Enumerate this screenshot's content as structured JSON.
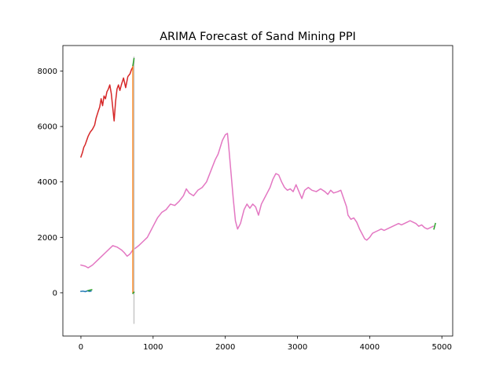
{
  "chart_data": {
    "type": "line",
    "title": "ARIMA Forecast of Sand Mining PPI",
    "xlabel": "",
    "ylabel": "",
    "xlim": [
      -250,
      5150
    ],
    "ylim": [
      -1560,
      8920
    ],
    "x_ticks": [
      0,
      1000,
      2000,
      3000,
      4000,
      5000
    ],
    "x_tick_labels": [
      "0",
      "1000",
      "2000",
      "3000",
      "4000",
      "5000"
    ],
    "y_ticks": [
      0,
      2000,
      4000,
      6000,
      8000
    ],
    "y_tick_labels": [
      "0",
      "2000",
      "4000",
      "6000",
      "8000"
    ],
    "grid": false,
    "legend": "none",
    "series": [
      {
        "color": "#d62728",
        "points": [
          [
            0,
            4900
          ],
          [
            20,
            5050
          ],
          [
            40,
            5250
          ],
          [
            60,
            5350
          ],
          [
            80,
            5500
          ],
          [
            100,
            5650
          ],
          [
            130,
            5800
          ],
          [
            160,
            5900
          ],
          [
            190,
            6050
          ],
          [
            210,
            6300
          ],
          [
            240,
            6550
          ],
          [
            260,
            6700
          ],
          [
            280,
            7000
          ],
          [
            300,
            6750
          ],
          [
            320,
            7100
          ],
          [
            340,
            7000
          ],
          [
            360,
            7250
          ],
          [
            380,
            7350
          ],
          [
            400,
            7500
          ],
          [
            420,
            7200
          ],
          [
            440,
            6700
          ],
          [
            460,
            6200
          ],
          [
            480,
            6900
          ],
          [
            500,
            7350
          ],
          [
            520,
            7500
          ],
          [
            540,
            7300
          ],
          [
            560,
            7500
          ],
          [
            590,
            7750
          ],
          [
            620,
            7400
          ],
          [
            650,
            7800
          ],
          [
            680,
            7900
          ],
          [
            700,
            8050
          ],
          [
            720,
            8150
          ]
        ]
      },
      {
        "color": "#e377c2",
        "points": [
          [
            0,
            1000
          ],
          [
            60,
            960
          ],
          [
            100,
            900
          ],
          [
            160,
            1000
          ],
          [
            220,
            1150
          ],
          [
            280,
            1300
          ],
          [
            340,
            1450
          ],
          [
            400,
            1600
          ],
          [
            440,
            1700
          ],
          [
            500,
            1650
          ],
          [
            560,
            1550
          ],
          [
            600,
            1450
          ],
          [
            640,
            1320
          ],
          [
            680,
            1400
          ],
          [
            720,
            1550
          ],
          [
            760,
            1620
          ],
          [
            800,
            1700
          ],
          [
            860,
            1850
          ],
          [
            920,
            2000
          ],
          [
            960,
            2200
          ],
          [
            1000,
            2400
          ],
          [
            1060,
            2700
          ],
          [
            1120,
            2900
          ],
          [
            1180,
            3000
          ],
          [
            1240,
            3200
          ],
          [
            1300,
            3150
          ],
          [
            1360,
            3300
          ],
          [
            1420,
            3500
          ],
          [
            1460,
            3750
          ],
          [
            1500,
            3600
          ],
          [
            1560,
            3500
          ],
          [
            1620,
            3700
          ],
          [
            1680,
            3800
          ],
          [
            1740,
            4000
          ],
          [
            1800,
            4400
          ],
          [
            1860,
            4800
          ],
          [
            1900,
            5000
          ],
          [
            1960,
            5500
          ],
          [
            2000,
            5700
          ],
          [
            2030,
            5750
          ],
          [
            2050,
            5200
          ],
          [
            2080,
            4300
          ],
          [
            2110,
            3400
          ],
          [
            2140,
            2600
          ],
          [
            2170,
            2300
          ],
          [
            2210,
            2500
          ],
          [
            2260,
            3000
          ],
          [
            2300,
            3200
          ],
          [
            2340,
            3050
          ],
          [
            2380,
            3200
          ],
          [
            2420,
            3100
          ],
          [
            2460,
            2800
          ],
          [
            2500,
            3200
          ],
          [
            2540,
            3400
          ],
          [
            2580,
            3600
          ],
          [
            2620,
            3800
          ],
          [
            2660,
            4100
          ],
          [
            2700,
            4300
          ],
          [
            2740,
            4250
          ],
          [
            2780,
            4000
          ],
          [
            2820,
            3800
          ],
          [
            2860,
            3700
          ],
          [
            2900,
            3750
          ],
          [
            2940,
            3650
          ],
          [
            2980,
            3900
          ],
          [
            3020,
            3650
          ],
          [
            3060,
            3400
          ],
          [
            3100,
            3700
          ],
          [
            3150,
            3800
          ],
          [
            3200,
            3700
          ],
          [
            3260,
            3650
          ],
          [
            3320,
            3750
          ],
          [
            3380,
            3650
          ],
          [
            3420,
            3550
          ],
          [
            3460,
            3700
          ],
          [
            3500,
            3600
          ],
          [
            3560,
            3650
          ],
          [
            3600,
            3700
          ],
          [
            3640,
            3400
          ],
          [
            3680,
            3100
          ],
          [
            3700,
            2800
          ],
          [
            3740,
            2650
          ],
          [
            3780,
            2700
          ],
          [
            3820,
            2550
          ],
          [
            3860,
            2300
          ],
          [
            3900,
            2100
          ],
          [
            3930,
            1950
          ],
          [
            3960,
            1900
          ],
          [
            4000,
            2000
          ],
          [
            4040,
            2150
          ],
          [
            4080,
            2200
          ],
          [
            4120,
            2250
          ],
          [
            4160,
            2300
          ],
          [
            4200,
            2250
          ],
          [
            4240,
            2300
          ],
          [
            4280,
            2350
          ],
          [
            4320,
            2400
          ],
          [
            4360,
            2450
          ],
          [
            4400,
            2500
          ],
          [
            4440,
            2450
          ],
          [
            4480,
            2500
          ],
          [
            4520,
            2550
          ],
          [
            4560,
            2600
          ],
          [
            4600,
            2550
          ],
          [
            4640,
            2500
          ],
          [
            4680,
            2400
          ],
          [
            4720,
            2450
          ],
          [
            4760,
            2350
          ],
          [
            4800,
            2300
          ],
          [
            4840,
            2350
          ],
          [
            4880,
            2400
          ]
        ]
      },
      {
        "color": "#ff7f0e",
        "points": [
          [
            720,
            0
          ],
          [
            720,
            8200
          ]
        ]
      },
      {
        "color": "#c7c7c7",
        "points": [
          [
            735,
            -1100
          ],
          [
            735,
            8500
          ]
        ]
      },
      {
        "color": "#2ca02c",
        "points": [
          [
            720,
            8200
          ],
          [
            735,
            8450
          ]
        ]
      },
      {
        "color": "#2ca02c",
        "points": [
          [
            720,
            -20
          ],
          [
            735,
            20
          ]
        ]
      },
      {
        "color": "#1f77b4",
        "points": [
          [
            0,
            50
          ],
          [
            30,
            60
          ],
          [
            60,
            40
          ],
          [
            90,
            70
          ],
          [
            120,
            50
          ],
          [
            140,
            60
          ]
        ]
      },
      {
        "color": "#2ca02c",
        "points": [
          [
            100,
            80
          ],
          [
            130,
            100
          ],
          [
            150,
            110
          ]
        ]
      },
      {
        "color": "#2ca02c",
        "points": [
          [
            4890,
            2300
          ],
          [
            4910,
            2500
          ]
        ]
      }
    ]
  }
}
